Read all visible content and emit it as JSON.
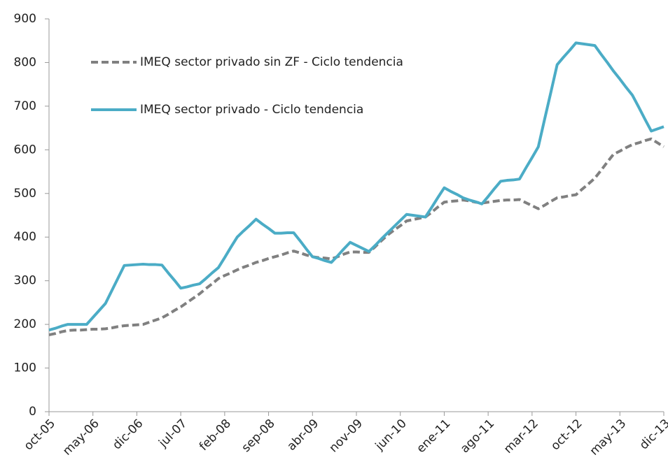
{
  "chart_data": {
    "type": "line",
    "categories": [
      "oct-05",
      null,
      null,
      null,
      null,
      null,
      null,
      "may-06",
      null,
      null,
      null,
      null,
      null,
      null,
      "dic-06",
      null,
      null,
      null,
      null,
      null,
      null,
      "jul-07",
      null,
      null,
      null,
      null,
      null,
      null,
      "feb-08",
      null,
      null,
      null,
      null,
      null,
      null,
      "sep-08",
      null,
      null,
      null,
      null,
      null,
      null,
      "abr-09",
      null,
      null,
      null,
      null,
      null,
      null,
      "nov-09",
      null,
      null,
      null,
      null,
      null,
      null,
      "jun-10",
      null,
      null,
      null,
      null,
      null,
      null,
      "ene-11",
      null,
      null,
      null,
      null,
      null,
      null,
      "ago-11",
      null,
      null,
      null,
      null,
      null,
      null,
      "mar-12",
      null,
      null,
      null,
      null,
      null,
      null,
      "oct-12",
      null,
      null,
      null,
      null,
      null,
      null,
      "may-13",
      null,
      null,
      null,
      null,
      null,
      null,
      "dic-13"
    ],
    "series": [
      {
        "name": "IMEQ sector privado sin ZF - Ciclo tendencia",
        "color": "#808080",
        "dash": true,
        "values": [
          176,
          179,
          183,
          186,
          187,
          187,
          188,
          189,
          189,
          190,
          192,
          195,
          197,
          198,
          199,
          200,
          205,
          210,
          215,
          223,
          232,
          240,
          250,
          260,
          270,
          282,
          293,
          305,
          312,
          318,
          325,
          331,
          336,
          342,
          346,
          351,
          355,
          359,
          364,
          368,
          364,
          359,
          355,
          353,
          352,
          350,
          355,
          361,
          366,
          366,
          365,
          365,
          378,
          392,
          405,
          416,
          426,
          437,
          440,
          443,
          446,
          457,
          469,
          480,
          482,
          483,
          485,
          483,
          480,
          478,
          480,
          482,
          484,
          485,
          485,
          486,
          479,
          472,
          465,
          473,
          482,
          490,
          492,
          495,
          497,
          510,
          522,
          535,
          553,
          572,
          590,
          597,
          605,
          612,
          616,
          621,
          625,
          616,
          607
        ]
      },
      {
        "name": "IMEQ sector privado - Ciclo tendencia",
        "color": "#4bacc6",
        "dash": false,
        "values": [
          187,
          191,
          196,
          200,
          200,
          200,
          200,
          216,
          232,
          248,
          277,
          306,
          335,
          336,
          337,
          338,
          337,
          337,
          336,
          318,
          301,
          283,
          286,
          290,
          293,
          305,
          318,
          330,
          353,
          377,
          400,
          414,
          427,
          441,
          430,
          420,
          409,
          409,
          410,
          410,
          392,
          373,
          355,
          351,
          346,
          342,
          357,
          373,
          388,
          381,
          374,
          367,
          381,
          396,
          410,
          424,
          438,
          452,
          450,
          448,
          446,
          468,
          491,
          513,
          505,
          498,
          490,
          485,
          481,
          476,
          493,
          511,
          528,
          530,
          531,
          533,
          558,
          582,
          607,
          670,
          732,
          795,
          812,
          828,
          845,
          843,
          841,
          839,
          819,
          800,
          780,
          762,
          743,
          725,
          698,
          670,
          643,
          648,
          653
        ]
      }
    ],
    "ylim": [
      0,
      900
    ],
    "yticks": [
      0,
      100,
      200,
      300,
      400,
      500,
      600,
      700,
      800,
      900
    ],
    "grid": false,
    "legend": "upper left"
  }
}
